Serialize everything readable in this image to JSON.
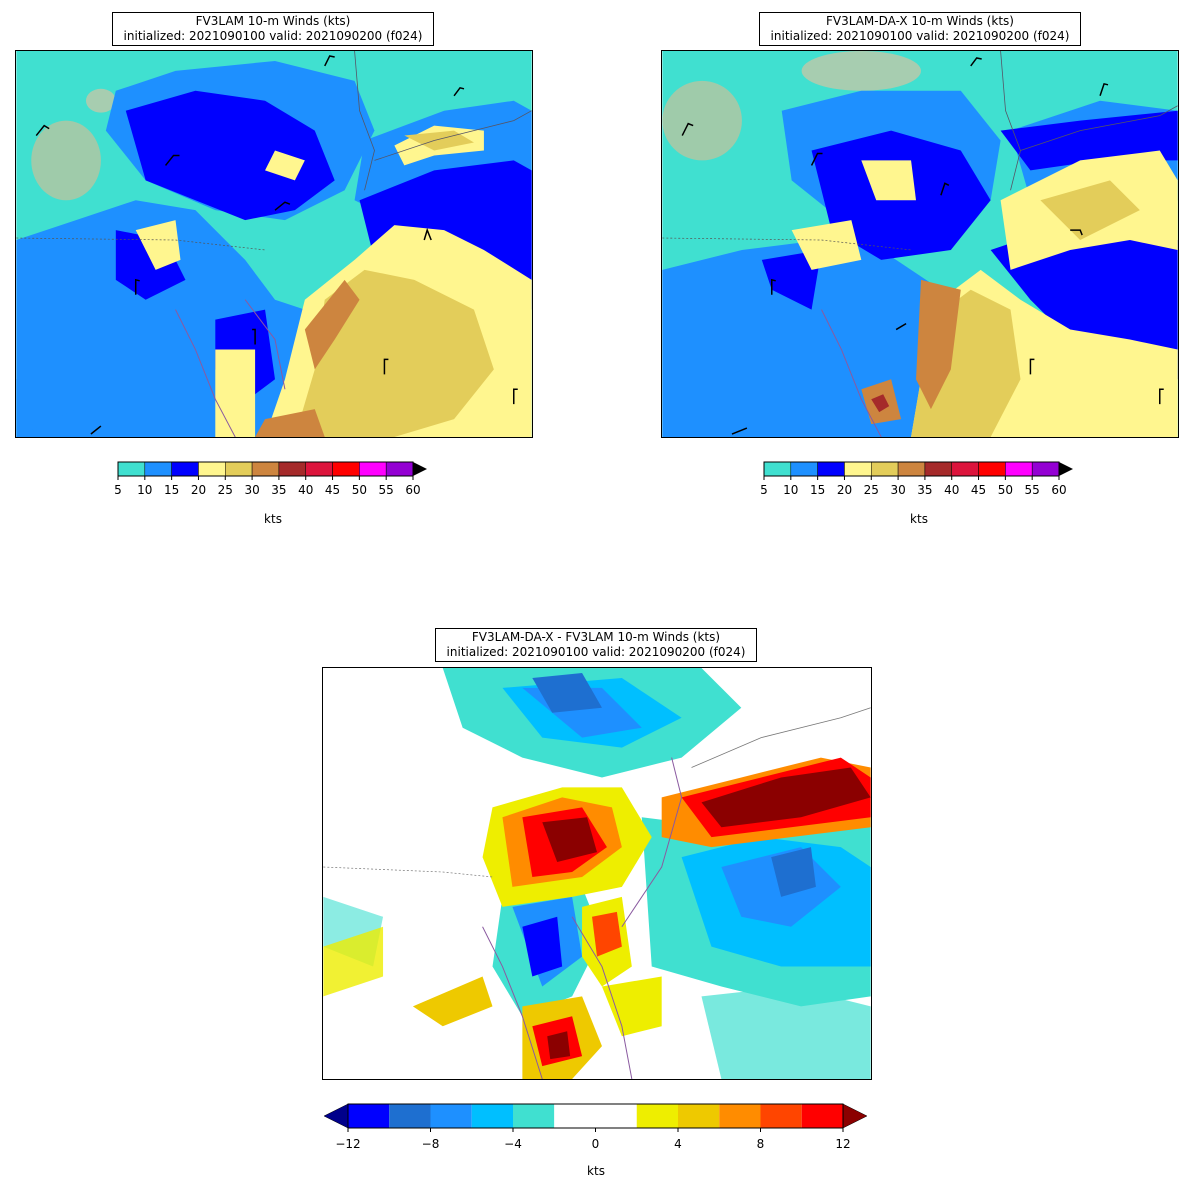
{
  "panels": [
    {
      "title_line1": "FV3LAM 10-m Winds (kts)",
      "title_line2": "initialized: 2021090100 valid: 2021090200 (f024)"
    },
    {
      "title_line1": "FV3LAM-DA-X 10-m Winds (kts)",
      "title_line2": "initialized: 2021090100 valid: 2021090200 (f024)"
    },
    {
      "title_line1": "FV3LAM-DA-X - FV3LAM 10-m Winds (kts)",
      "title_line2": "initialized: 2021090100 valid: 2021090200 (f024)"
    }
  ],
  "speed_colorbar": {
    "ticks": [
      "5",
      "10",
      "15",
      "20",
      "25",
      "30",
      "35",
      "40",
      "45",
      "50",
      "55",
      "60"
    ],
    "colors": [
      "#40e0d0",
      "#1e90ff",
      "#0000ff",
      "#fff68f",
      "#e3cd5a",
      "#cd853f",
      "#a52a2a",
      "#dc143c",
      "#ff0000",
      "#ff00ff",
      "#9400d3"
    ],
    "extend_color": "#000000",
    "label": "kts"
  },
  "diff_colorbar": {
    "ticks": [
      "−12",
      "−8",
      "−4",
      "0",
      "4",
      "8",
      "12"
    ],
    "colors": [
      "#0000ff",
      "#1e6fd0",
      "#1e90ff",
      "#00bfff",
      "#40e0d0",
      "#ffffff",
      "#ffffff",
      "#eeee00",
      "#eec900",
      "#ff8c00",
      "#ff4500",
      "#ff0000"
    ],
    "extend_low": "#00008b",
    "extend_high": "#8b0000",
    "label": "kts"
  }
}
